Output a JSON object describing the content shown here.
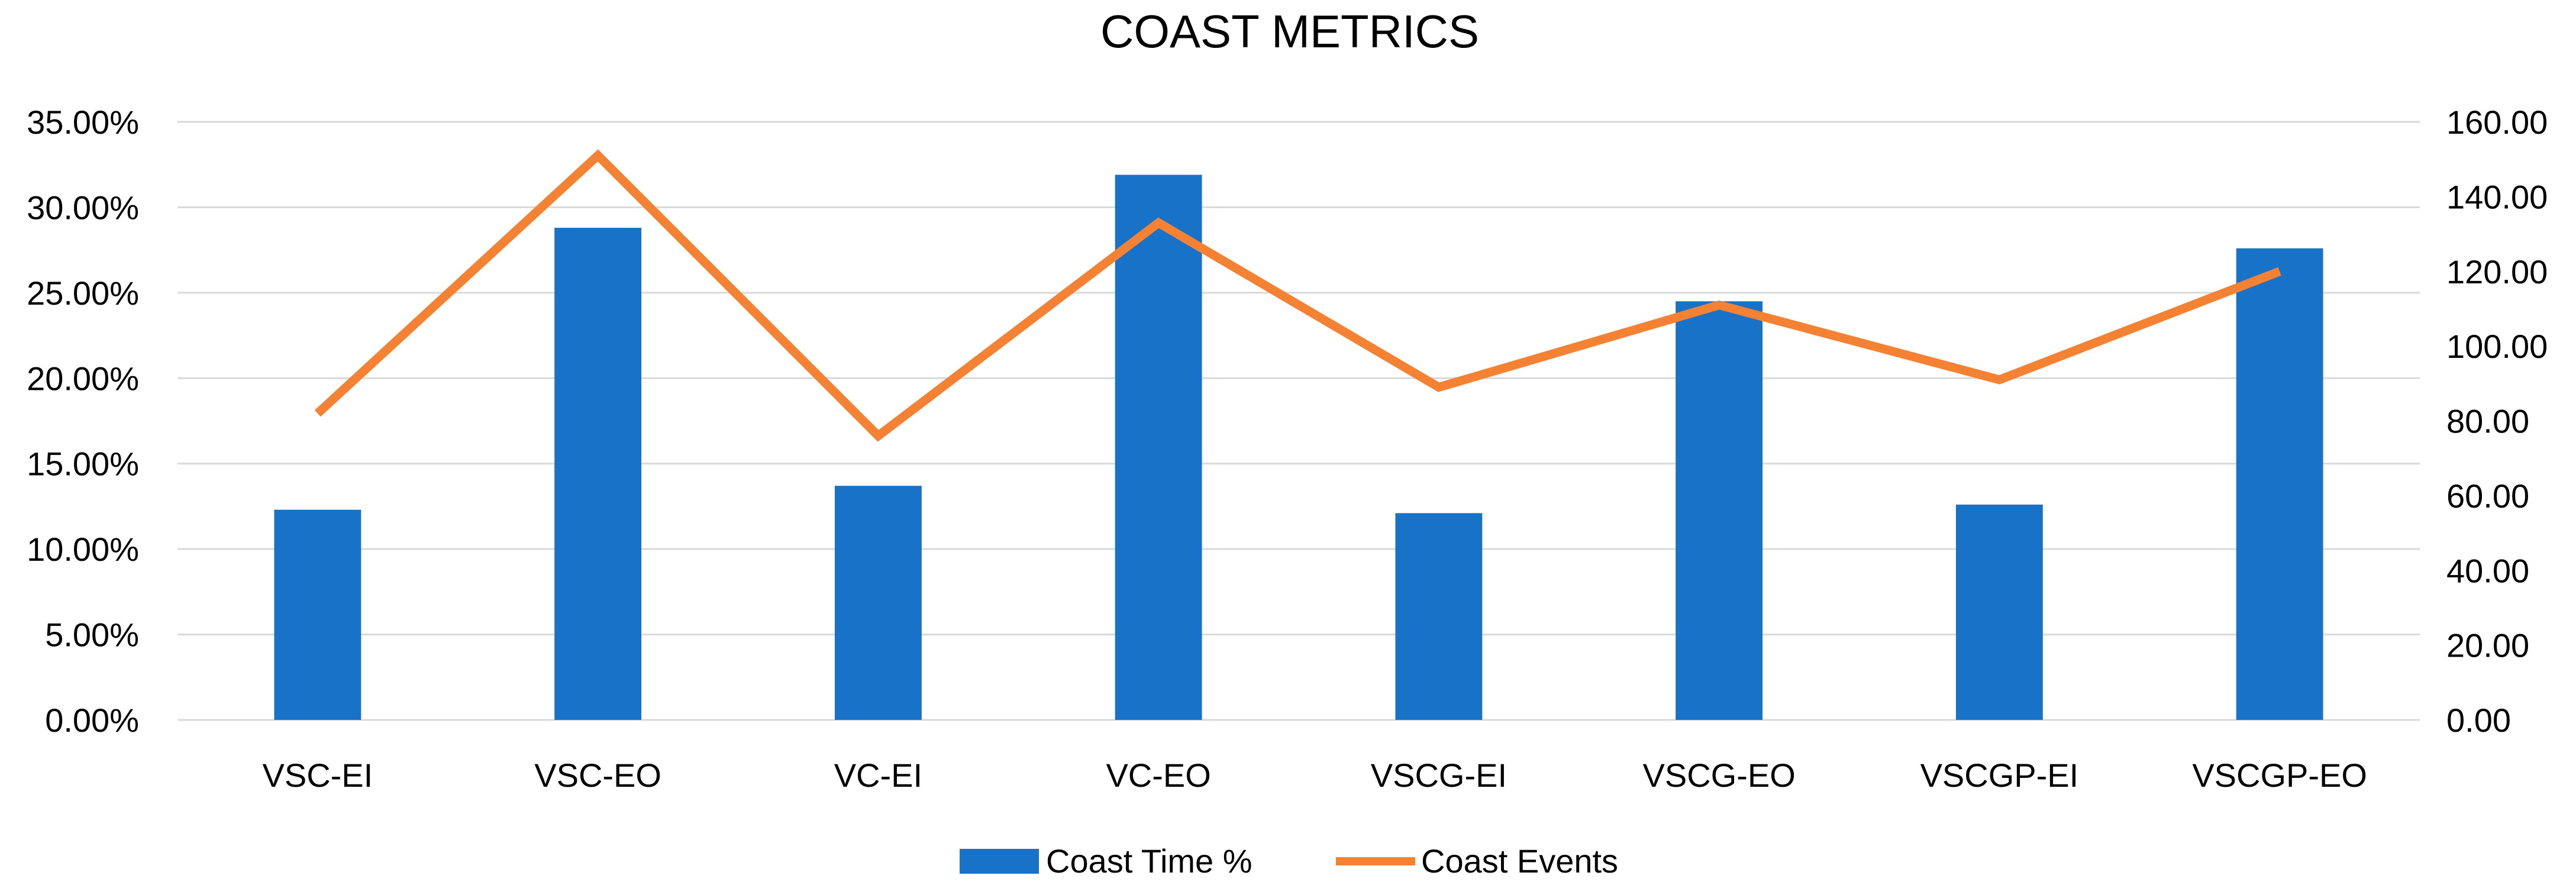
{
  "chart_data": {
    "type": "bar",
    "title": "COAST METRICS",
    "categories": [
      "VSC-EI",
      "VSC-EO",
      "VC-EI",
      "VC-EO",
      "VSCG-EI",
      "VSCG-EO",
      "VSCGP-EI",
      "VSCGP-EO"
    ],
    "series": [
      {
        "name": "Coast Time %",
        "type": "bar",
        "axis": "left",
        "color": "#1872c8",
        "values": [
          12.3,
          28.8,
          13.7,
          31.9,
          12.1,
          24.5,
          12.6,
          27.6
        ]
      },
      {
        "name": "Coast Events",
        "type": "line",
        "axis": "right",
        "color": "#f58233",
        "values": [
          82,
          151,
          76,
          133,
          89,
          111,
          91,
          120
        ]
      }
    ],
    "y_left": {
      "min": 0,
      "max": 35,
      "step": 5,
      "tick_labels": [
        "0.00%",
        "5.00%",
        "10.00%",
        "15.00%",
        "20.00%",
        "25.00%",
        "30.00%",
        "35.00%"
      ]
    },
    "y_right": {
      "min": 0,
      "max": 160,
      "step": 20,
      "tick_labels": [
        "0.00",
        "20.00",
        "40.00",
        "60.00",
        "80.00",
        "100.00",
        "120.00",
        "140.00",
        "160.00"
      ]
    },
    "grid": true,
    "legend_position": "bottom"
  }
}
